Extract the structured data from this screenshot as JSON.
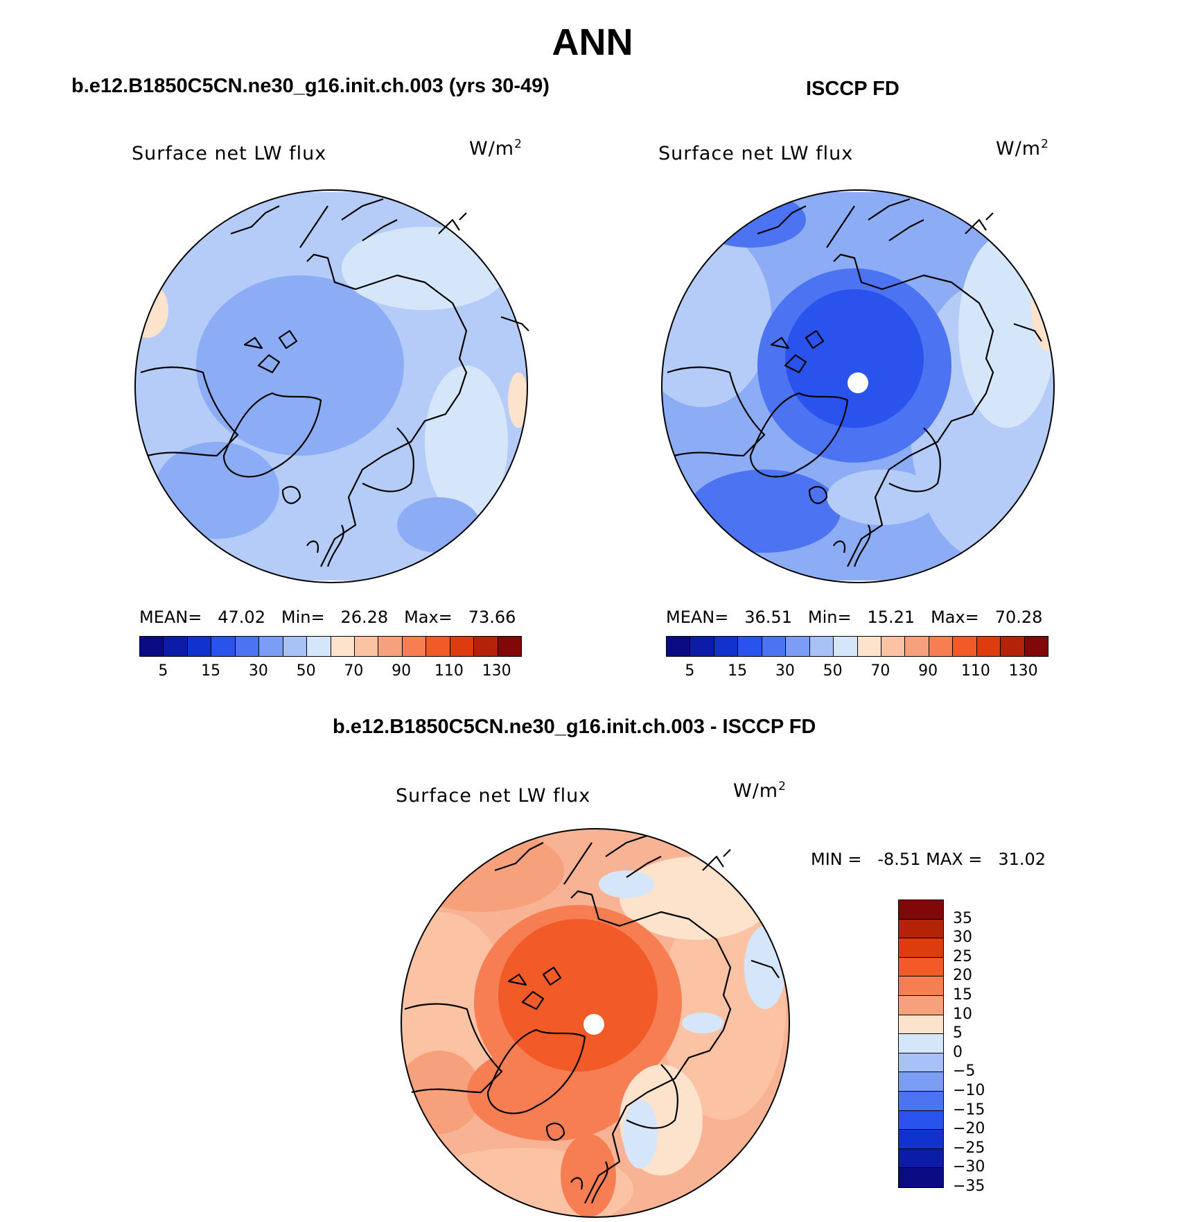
{
  "figure": {
    "title": "ANN",
    "panels": [
      {
        "id": "model",
        "case_title": "b.e12.B1850C5CN.ne30_g16.init.ch.003 (yrs 30-49)",
        "variable_label": "Surface net LW flux",
        "units": "W/m",
        "units_sup": "2",
        "stats": {
          "mean_label": "MEAN=",
          "mean": "47.02",
          "min_label": "Min=",
          "min": "26.28",
          "max_label": "Max=",
          "max": "73.66"
        },
        "field": {
          "base_color": "#b4ccf7",
          "pole_hole": false
        }
      },
      {
        "id": "obs",
        "case_title": "ISCCP FD",
        "variable_label": "Surface net LW flux",
        "units": "W/m",
        "units_sup": "2",
        "stats": {
          "mean_label": "MEAN=",
          "mean": "36.51",
          "min_label": "Min=",
          "min": "15.21",
          "max_label": "Max=",
          "max": "70.28"
        },
        "field": {
          "base_color": "#8cadf5",
          "pole_hole": true
        }
      },
      {
        "id": "diff",
        "case_title": "b.e12.B1850C5CN.ne30_g16.init.ch.003 - ISCCP FD",
        "variable_label": "Surface net LW flux",
        "units": "W/m",
        "units_sup": "2",
        "stats": {
          "min_label": "MIN =",
          "min": "-8.51",
          "max_label": "MAX =",
          "max": "31.02"
        },
        "field": {
          "base_color": "#f8b394",
          "pole_hole": true
        }
      }
    ],
    "abs_colorbar": {
      "colors": [
        "#0a0a82",
        "#0c1ca8",
        "#1232d0",
        "#2a52ec",
        "#4c74f2",
        "#7c9df5",
        "#a8c2f8",
        "#d6e6fa",
        "#fde2cc",
        "#fbc2a4",
        "#f7a07c",
        "#f77e52",
        "#f25a28",
        "#de3c0e",
        "#b42208",
        "#800808"
      ],
      "tick_labels": [
        "5",
        "15",
        "30",
        "50",
        "70",
        "90",
        "110",
        "130"
      ]
    },
    "diff_colorbar": {
      "colors": [
        "#800808",
        "#b42208",
        "#de3c0e",
        "#f25a28",
        "#f77e52",
        "#f7a07c",
        "#fde2cc",
        "#d6e6fa",
        "#a8c2f8",
        "#7c9df5",
        "#4c74f2",
        "#2a52ec",
        "#1232d0",
        "#0c1ca8",
        "#0a0a82"
      ],
      "tick_labels": [
        "35",
        "30",
        "25",
        "20",
        "15",
        "10",
        "5",
        "0",
        "−5",
        "−10",
        "−15",
        "−20",
        "−25",
        "−30",
        "−35"
      ]
    }
  }
}
